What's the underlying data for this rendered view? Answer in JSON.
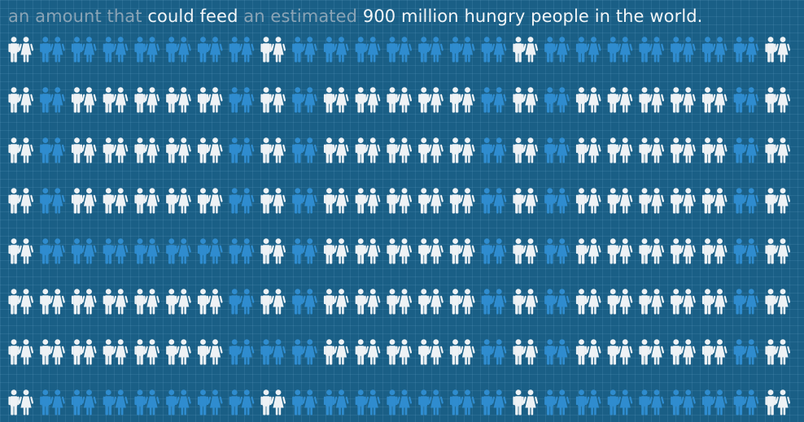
{
  "headline": {
    "part1": "an amount that ",
    "part2": "could feed ",
    "part3": "an estimated ",
    "part4": "900 million hungry people in the world."
  },
  "colors": {
    "background": "#1a5f86",
    "muted_text": "#8aa4b6",
    "bright_text": "#f2f5f7",
    "figure_white": "#eef2f5",
    "figure_blue": "#2f8ccf"
  },
  "icon": "man-and-woman-pair-icon",
  "pictogram_grid": {
    "columns": 25,
    "rows": [
      "WBBBBBBBWBBBBBBBWBBBBBBBW",
      "WBWWWWWBWBWWWWWBWBWWWWWBW",
      "WBWWWWWBWBWWWWWBWBWWWWWBW",
      "WBWWWWWBWBWWWWWBWBWWWWWBW",
      "WBBBBBBBWBWWWWWBWBWWWWWBW",
      "WWWWWWWBWBWWWWWBWBWWWWWBW",
      "WWWWWWWBBBWWWWWBWBWWWWWBW",
      "WBBBBBBBWBBBBBBBWBBBBBBBW"
    ]
  }
}
